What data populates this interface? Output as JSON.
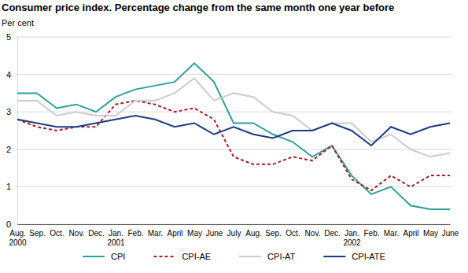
{
  "chart_data": {
    "type": "line",
    "title": "Consumer price index. Percentage change from the same month one year before",
    "y_label": "Per cent",
    "categories": [
      "Aug.\n2000",
      "Sep.",
      "Oct.",
      "Nov.",
      "Dec.",
      "Jan.\n2001",
      "Feb.",
      "Mar.",
      "April",
      "May",
      "June",
      "July",
      "Aug.",
      "Sep.",
      "Oct.",
      "Nov.",
      "Dec.",
      "Jan.\n2002",
      "Feb.",
      "Mar.",
      "April",
      "May",
      "June"
    ],
    "series": [
      {
        "name": "CPI",
        "color": "#2aa198",
        "line_style": "solid",
        "values": [
          3.5,
          3.5,
          3.1,
          3.2,
          3.0,
          3.4,
          3.6,
          3.7,
          3.8,
          4.3,
          3.8,
          2.7,
          2.7,
          2.4,
          2.2,
          1.8,
          2.1,
          1.3,
          0.8,
          1.0,
          0.5,
          0.4,
          0.4
        ]
      },
      {
        "name": "CPI-AE",
        "color": "#a51d21",
        "line_style": "dashed",
        "values": [
          2.8,
          2.6,
          2.5,
          2.6,
          2.6,
          3.2,
          3.3,
          3.2,
          3.0,
          3.1,
          2.8,
          1.8,
          1.6,
          1.6,
          1.8,
          1.7,
          2.1,
          1.2,
          0.9,
          1.3,
          1.0,
          1.3,
          1.3
        ]
      },
      {
        "name": "CPI-AT",
        "color": "#cccccc",
        "line_style": "solid",
        "values": [
          3.3,
          3.3,
          2.9,
          3.0,
          2.9,
          2.9,
          3.3,
          3.3,
          3.5,
          3.9,
          3.3,
          3.5,
          3.4,
          3.0,
          2.9,
          2.5,
          2.7,
          2.7,
          2.2,
          2.4,
          2.0,
          1.8,
          1.9
        ]
      },
      {
        "name": "CPI-ATE",
        "color": "#1b3b82",
        "line_style": "solid",
        "values": [
          2.8,
          2.7,
          2.6,
          2.6,
          2.7,
          2.8,
          2.9,
          2.8,
          2.6,
          2.7,
          2.4,
          2.6,
          2.4,
          2.3,
          2.5,
          2.5,
          2.7,
          2.5,
          2.1,
          2.6,
          2.4,
          2.6,
          2.7
        ]
      }
    ],
    "ylim": [
      0,
      5
    ],
    "yticks": [
      0,
      1,
      2,
      3,
      4,
      5
    ],
    "grid": true,
    "legend": "bottom"
  }
}
